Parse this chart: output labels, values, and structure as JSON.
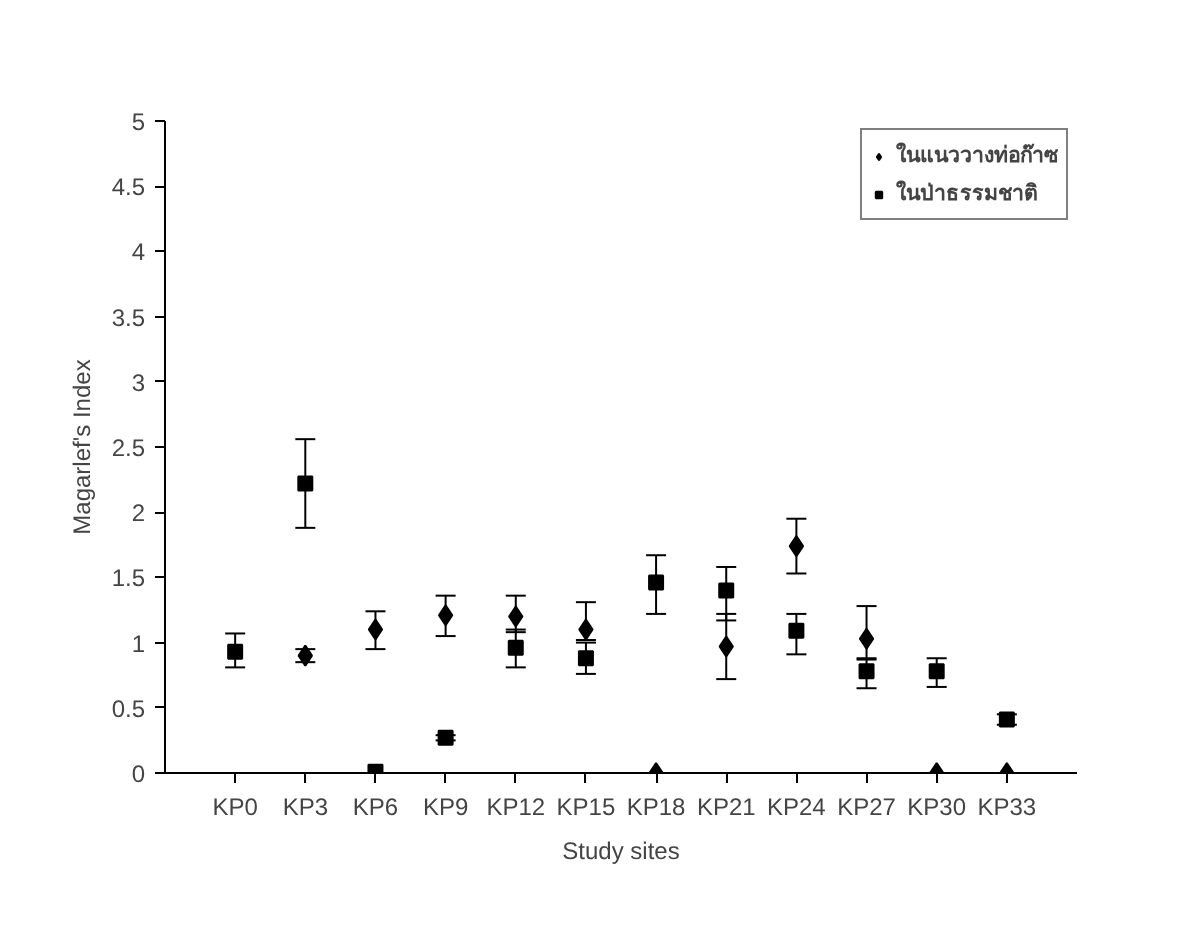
{
  "chart_data": {
    "type": "scatter",
    "xlabel": "Study sites",
    "ylabel": "Magarlef's Index",
    "categories": [
      "KP0",
      "KP3",
      "KP6",
      "KP9",
      "KP12",
      "KP15",
      "KP18",
      "KP21",
      "KP24",
      "KP27",
      "KP30",
      "KP33"
    ],
    "series": [
      {
        "name": "ในแนววางท่อก๊าซ",
        "color": "#000000",
        "marker": "diamond",
        "values": [
          null,
          0.9,
          1.1,
          1.21,
          1.2,
          1.1,
          0,
          0.97,
          1.74,
          1.03,
          0,
          0
        ],
        "errors": [
          null,
          [
            0.85,
            0.95
          ],
          [
            0.95,
            1.24
          ],
          [
            1.05,
            1.36
          ],
          [
            1.08,
            1.36
          ],
          [
            1.02,
            1.31
          ],
          null,
          [
            0.72,
            1.22
          ],
          [
            1.53,
            1.95
          ],
          [
            0.88,
            1.28
          ],
          null,
          null
        ]
      },
      {
        "name": "ในป่าธรรมชาติ",
        "color": "#000000",
        "marker": "square",
        "values": [
          0.93,
          2.22,
          0.01,
          0.27,
          0.96,
          0.88,
          1.46,
          1.4,
          1.09,
          0.78,
          0.78,
          0.41
        ],
        "errors": [
          [
            0.81,
            1.07
          ],
          [
            1.88,
            2.56
          ],
          null,
          [
            0.25,
            0.29
          ],
          [
            0.81,
            1.1
          ],
          [
            0.76,
            1.0
          ],
          [
            1.22,
            1.67
          ],
          [
            1.17,
            1.58
          ],
          [
            0.91,
            1.22
          ],
          [
            0.65,
            0.87
          ],
          [
            0.66,
            0.88
          ],
          [
            0.37,
            0.45
          ]
        ]
      }
    ],
    "ylim": [
      0,
      5
    ],
    "yticks": [
      0,
      0.5,
      1,
      1.5,
      2,
      2.5,
      3,
      3.5,
      4,
      4.5,
      5
    ],
    "grid": false,
    "legend": "top right"
  }
}
